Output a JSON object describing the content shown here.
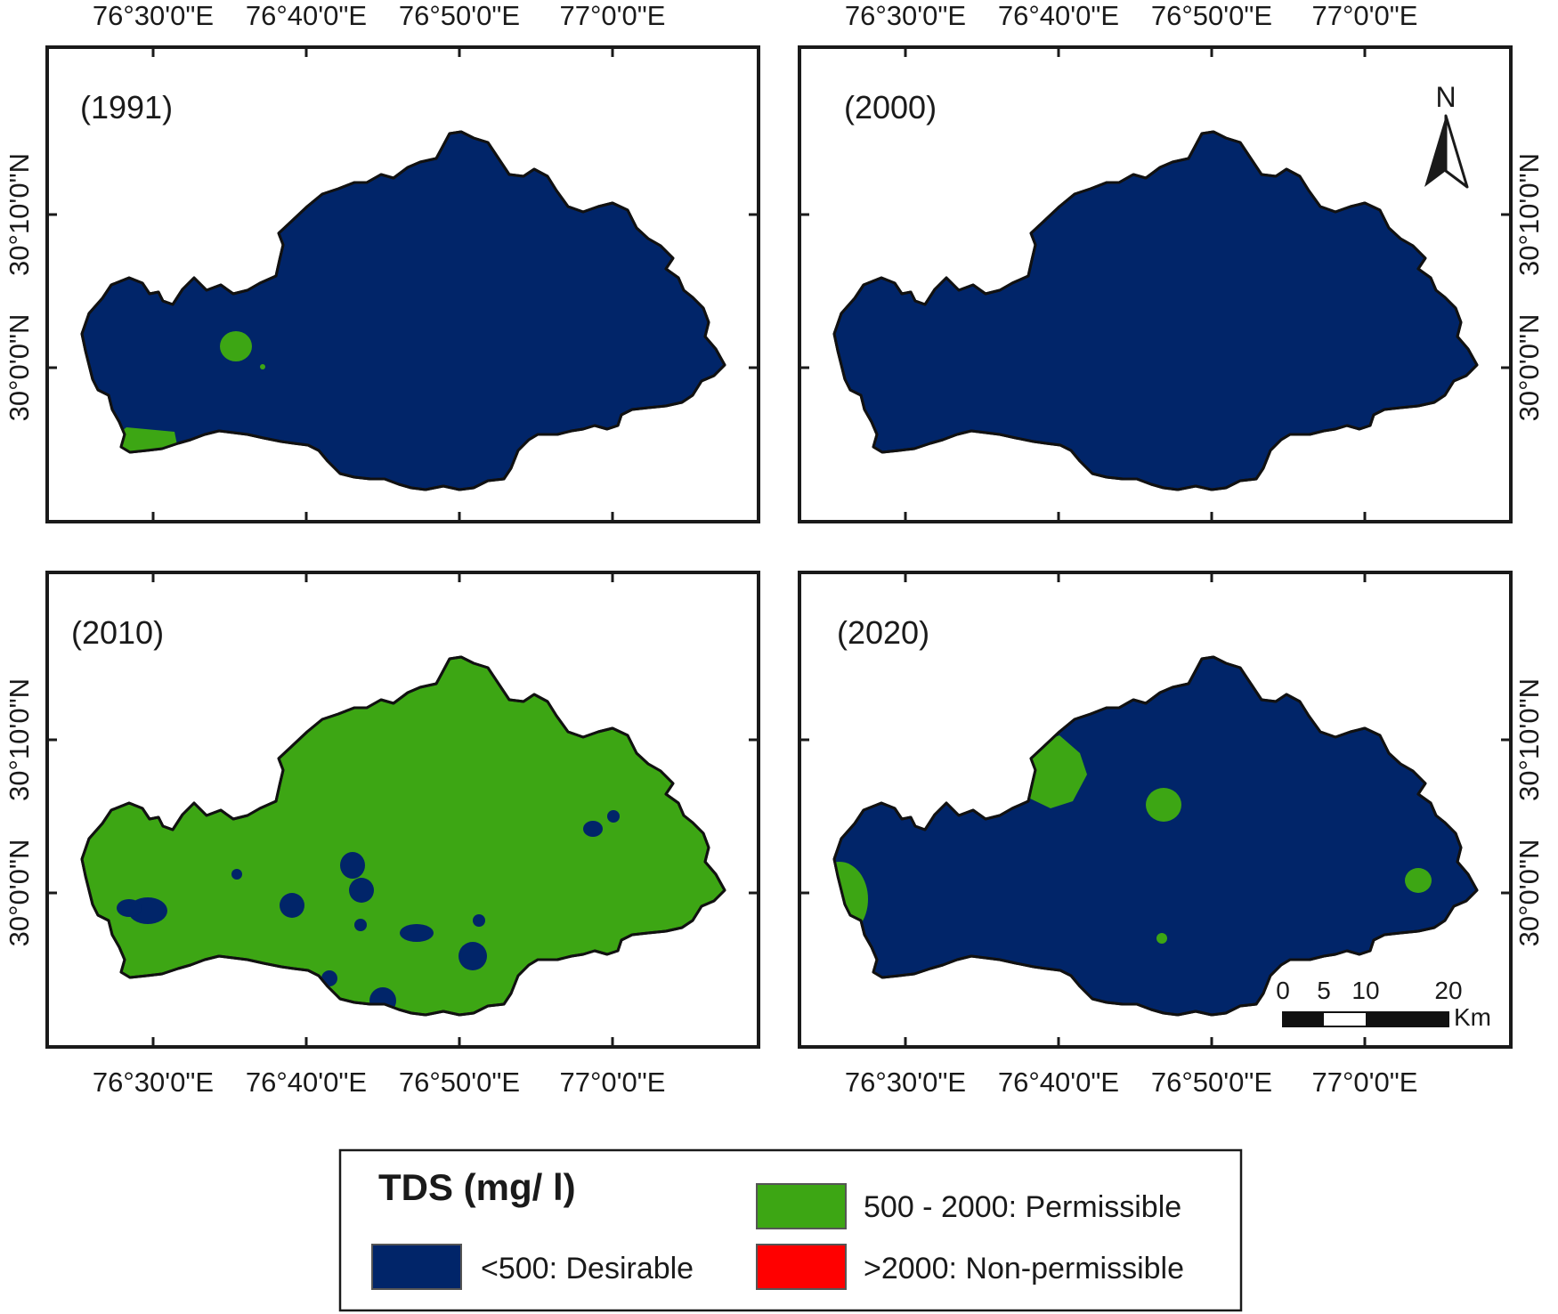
{
  "colors": {
    "desirable": "#012569",
    "permissible": "#3da614",
    "non_permissible": "#ff0000",
    "outline": "#111111"
  },
  "axes": {
    "longitude_labels": [
      "76°30'0\"E",
      "76°40'0\"E",
      "76°50'0\"E",
      "77°0'0\"E"
    ],
    "latitude_labels": [
      "30°10'0\"N",
      "30°0'0\"N"
    ]
  },
  "maps": [
    {
      "year_label": "(1991)",
      "base_class": "desirable",
      "patches": [
        {
          "class": "permissible",
          "shape": "blob-west-center"
        },
        {
          "class": "permissible",
          "shape": "dot-west-small"
        },
        {
          "class": "permissible",
          "shape": "southwest-corner"
        }
      ]
    },
    {
      "year_label": "(2000)",
      "base_class": "desirable",
      "patches": []
    },
    {
      "year_label": "(2010)",
      "base_class": "permissible",
      "patches": [
        {
          "class": "desirable",
          "shape": "southwest-blob"
        },
        {
          "class": "desirable",
          "shape": "center-blobs"
        },
        {
          "class": "desirable",
          "shape": "south-blobs"
        },
        {
          "class": "desirable",
          "shape": "east-blobs"
        }
      ]
    },
    {
      "year_label": "(2020)",
      "base_class": "desirable",
      "patches": [
        {
          "class": "permissible",
          "shape": "northwest-blob"
        },
        {
          "class": "permissible",
          "shape": "west-edge"
        },
        {
          "class": "permissible",
          "shape": "center-blob"
        },
        {
          "class": "permissible",
          "shape": "east-blob"
        },
        {
          "class": "permissible",
          "shape": "center-dot"
        }
      ]
    }
  ],
  "north_arrow": {
    "label": "N"
  },
  "scale_bar": {
    "ticks": [
      "0",
      "5",
      "10",
      "20"
    ],
    "unit": "Km"
  },
  "legend": {
    "title": "TDS (mg/ l)",
    "items": [
      {
        "label": "<500: Desirable",
        "color_key": "desirable"
      },
      {
        "label": "500 - 2000: Permissible",
        "color_key": "permissible"
      },
      {
        "label": ">2000: Non-permissible",
        "color_key": "non_permissible"
      }
    ]
  }
}
